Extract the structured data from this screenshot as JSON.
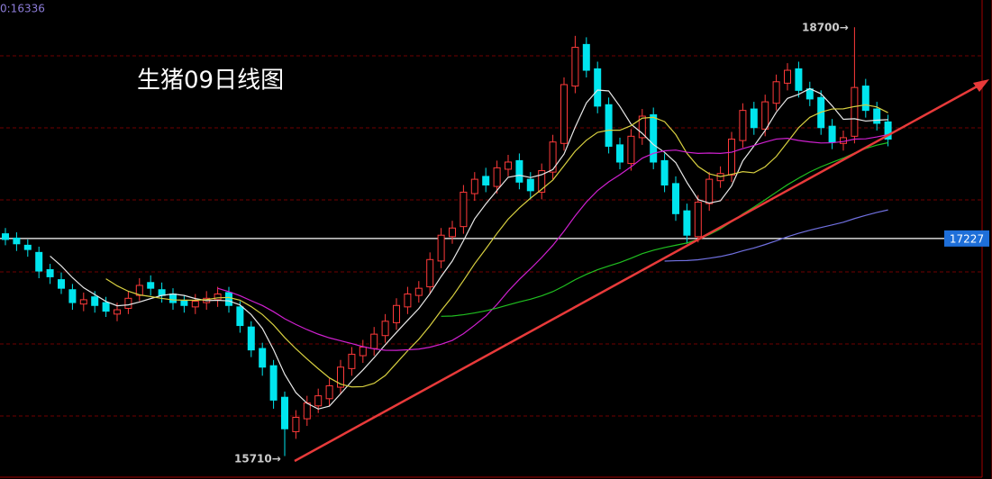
{
  "header_text": "0:16336",
  "chart_data": {
    "type": "candlestick",
    "title": "生猪09日线图",
    "ylim": [
      15550,
      18890
    ],
    "up_color": "#ff3a3a",
    "down_color": "#00e5ee",
    "open": [
      17260,
      17230,
      17180,
      17130,
      17010,
      16940,
      16870,
      16770,
      16820,
      16780,
      16700,
      16740,
      16830,
      16920,
      16870,
      16840,
      16790,
      16750,
      16780,
      16800,
      16850,
      16750,
      16610,
      16460,
      16340,
      16120,
      15880,
      15970,
      16060,
      16110,
      16190,
      16320,
      16410,
      16460,
      16550,
      16640,
      16750,
      16830,
      16890,
      17070,
      17240,
      17310,
      17540,
      17660,
      17590,
      17710,
      17770,
      17640,
      17550,
      17690,
      17890,
      18290,
      18580,
      18410,
      18160,
      17880,
      17750,
      17930,
      18090,
      17770,
      17610,
      17420,
      17240,
      17470,
      17630,
      17670,
      17910,
      18130,
      17990,
      18170,
      18310,
      18410,
      18270,
      18210,
      18010,
      17890,
      17940,
      18290,
      18130,
      18040
    ],
    "high": [
      17300,
      17270,
      17220,
      17170,
      17050,
      16990,
      16910,
      16850,
      16860,
      16820,
      16780,
      16860,
      16950,
      16970,
      16920,
      16880,
      16830,
      16840,
      16860,
      16890,
      16890,
      16790,
      16650,
      16500,
      16380,
      16160,
      16030,
      16130,
      16180,
      16250,
      16380,
      16470,
      16520,
      16610,
      16700,
      16810,
      16890,
      16930,
      17130,
      17300,
      17350,
      17600,
      17690,
      17720,
      17770,
      17810,
      17820,
      17690,
      17750,
      17950,
      18350,
      18640,
      18630,
      18460,
      18210,
      17930,
      17990,
      18130,
      18140,
      17820,
      17660,
      17470,
      17530,
      17690,
      17730,
      17970,
      18170,
      18180,
      18230,
      18370,
      18450,
      18460,
      18320,
      18260,
      18060,
      17980,
      18700,
      18340,
      18180,
      18090
    ],
    "low": [
      17180,
      17140,
      17100,
      16950,
      16910,
      16840,
      16730,
      16720,
      16710,
      16680,
      16650,
      16700,
      16790,
      16830,
      16780,
      16730,
      16710,
      16700,
      16730,
      16750,
      16710,
      16570,
      16400,
      16270,
      16040,
      15710,
      15830,
      15920,
      16010,
      16060,
      16140,
      16270,
      16360,
      16410,
      16500,
      16590,
      16700,
      16780,
      16840,
      17020,
      17190,
      17260,
      17490,
      17550,
      17540,
      17660,
      17570,
      17500,
      17500,
      17640,
      17840,
      18240,
      18350,
      18100,
      17820,
      17710,
      17700,
      17880,
      17710,
      17550,
      17350,
      17190,
      17200,
      17420,
      17580,
      17620,
      17860,
      17950,
      17940,
      18120,
      18260,
      18210,
      18150,
      17950,
      17850,
      17840,
      17890,
      18070,
      17980,
      17870
    ],
    "close": [
      17220,
      17190,
      17150,
      17000,
      16960,
      16880,
      16780,
      16800,
      16760,
      16720,
      16730,
      16810,
      16900,
      16880,
      16830,
      16780,
      16760,
      16790,
      16810,
      16840,
      16760,
      16620,
      16450,
      16330,
      16100,
      15900,
      15980,
      16080,
      16130,
      16200,
      16330,
      16420,
      16470,
      16560,
      16650,
      16760,
      16840,
      16880,
      17080,
      17250,
      17300,
      17550,
      17640,
      17600,
      17720,
      17760,
      17620,
      17560,
      17700,
      17900,
      18300,
      18560,
      18400,
      18150,
      17870,
      17760,
      17940,
      18080,
      17760,
      17600,
      17400,
      17250,
      17480,
      17640,
      17680,
      17920,
      18120,
      18000,
      18180,
      18320,
      18400,
      18260,
      18200,
      18000,
      17900,
      17930,
      18280,
      18120,
      18030,
      17920
    ],
    "moving_averages": [
      {
        "period": 5,
        "color": "#e8e8e8"
      },
      {
        "period": 10,
        "color": "#d8d040"
      },
      {
        "period": 20,
        "color": "#d020d0"
      },
      {
        "period": 40,
        "color": "#20c020"
      },
      {
        "period": 60,
        "color": "#7070e0"
      }
    ],
    "ref_line": {
      "value": 17227,
      "color": "#ffffff",
      "label_color": "#1e6fd9"
    },
    "annotations": [
      {
        "text": "18700→"
      },
      {
        "text": "15710→"
      }
    ]
  }
}
